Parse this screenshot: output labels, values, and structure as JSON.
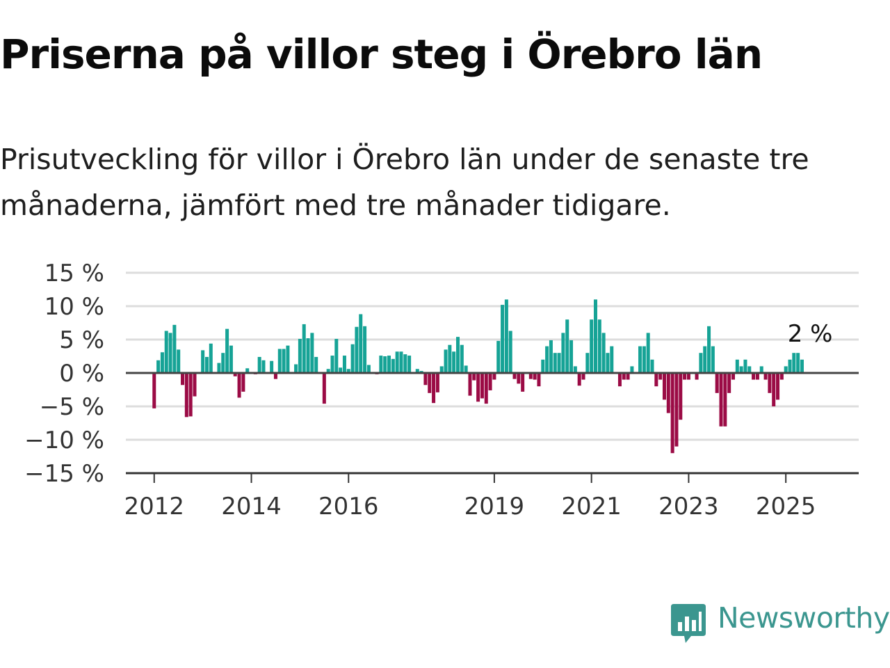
{
  "header": {
    "title": "Priserna på villor steg i Örebro län",
    "subtitle": "Prisutveckling för villor i Örebro län under de senaste tre månaderna, jämfört med tre månader tidigare."
  },
  "brand": {
    "name": "Newsworthy",
    "icon": "newsworthy-logo-icon",
    "color": "#3b968f"
  },
  "colors": {
    "positive": "#16a396",
    "negative": "#9b0b45",
    "grid": "#dddddd",
    "axis": "#444444"
  },
  "chart_data": {
    "type": "bar",
    "title": "Priserna på villor steg i Örebro län",
    "subtitle": "Prisutveckling för villor i Örebro län under de senaste tre månaderna, jämfört med tre månader tidigare.",
    "xlabel": "",
    "ylabel": "",
    "ylim": [
      -15,
      15
    ],
    "xlim": [
      "2011-06",
      "2026-07"
    ],
    "y_ticks": [
      15,
      10,
      5,
      0,
      -5,
      -10,
      -15
    ],
    "y_tick_labels": [
      "15 %",
      "10 %",
      "5 %",
      "0 %",
      "−5 %",
      "−10 %",
      "−15 %"
    ],
    "x_ticks": [
      "2012-01",
      "2014-01",
      "2016-01",
      "2019-01",
      "2021-01",
      "2023-01",
      "2025-01"
    ],
    "x_tick_labels": [
      "2012",
      "2014",
      "2016",
      "2019",
      "2021",
      "2023",
      "2025"
    ],
    "grid": "horizontal",
    "annotation": {
      "text": "2 %",
      "month": "2025-07"
    },
    "series": [
      {
        "start": "2012-01",
        "values": [
          -5.3,
          1.9,
          3.1,
          6.3,
          6.0,
          7.2,
          3.5,
          -1.8,
          -6.6,
          -6.5,
          -3.5,
          0,
          3.4,
          2.4,
          4.4,
          0,
          1.5,
          3.0,
          6.6,
          4.1,
          -0.5,
          -3.7,
          -2.8,
          0.7,
          0,
          -0.2,
          2.4,
          1.9,
          0,
          1.8,
          -0.9,
          3.6,
          3.6,
          4.1,
          0,
          1.3,
          5.1,
          7.3,
          5.2,
          6.0,
          2.4,
          0,
          -4.6,
          0.6,
          2.6,
          5.1,
          0.8,
          2.6,
          0.6,
          4.3,
          6.9,
          8.8,
          7.0,
          1.2,
          0,
          -0.2,
          2.6,
          2.5,
          2.6,
          2.1,
          3.2,
          3.2,
          2.8,
          2.6,
          0,
          0.6,
          0.3,
          -1.8,
          -3.0,
          -4.5,
          -2.9,
          1.0,
          3.5,
          4.2,
          3.2,
          5.4,
          4.2,
          1.1,
          -3.4,
          -1.1,
          -4.3,
          -3.8,
          -4.6,
          -2.6,
          -1.0,
          4.8,
          10.2,
          11.0,
          6.3,
          -0.9,
          -1.6,
          -2.8,
          0,
          -0.9,
          -1.0,
          -2.0,
          2.0,
          4.0,
          4.9,
          3.0,
          3.0,
          6.0,
          8.0,
          4.9,
          1.0,
          -1.9,
          -1.0,
          3.0,
          8.0,
          11.0,
          8.0,
          6.0,
          3.0,
          4.0,
          0,
          -2.0,
          -1.0,
          -1.0,
          1.0,
          0,
          4.0,
          4.0,
          6.0,
          2.0,
          -2.0,
          -1.0,
          -4.0,
          -6.0,
          -12.0,
          -11.0,
          -7.0,
          -1.0,
          -1.0,
          0,
          -1.0,
          3.0,
          4.0,
          7.0,
          4.0,
          -3.0,
          -8.0,
          -8.0,
          -3.0,
          -1.0,
          2.0,
          1.0,
          2.0,
          1.0,
          -1.0,
          -1.0,
          1.0,
          -1.0,
          -3.0,
          -5.0,
          -4.0,
          -1.0,
          1.0,
          2.0,
          3.0,
          3.0,
          2.0
        ]
      }
    ]
  }
}
